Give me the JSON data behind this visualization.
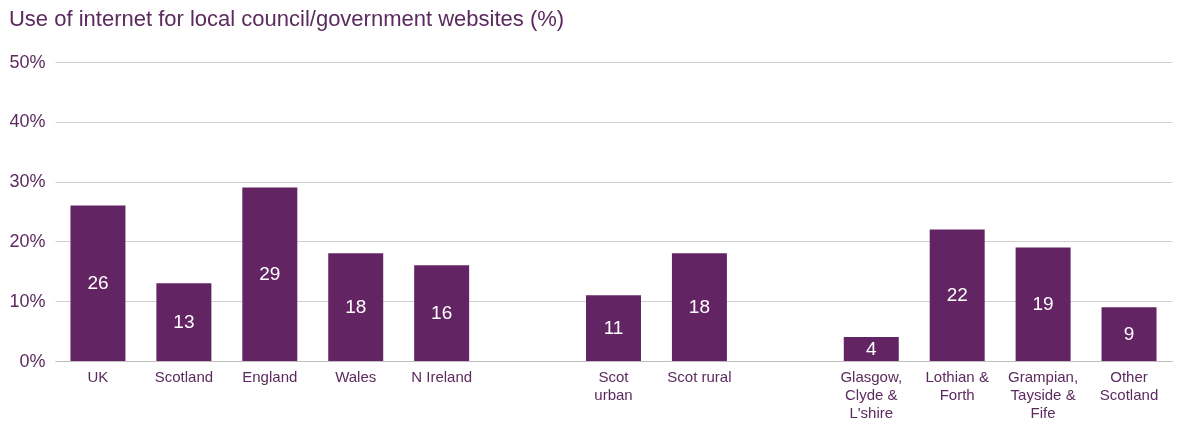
{
  "chart_data": {
    "type": "bar",
    "title": "Use of internet for local council/government websites (%)",
    "categories": [
      "UK",
      "Scotland",
      "England",
      "Wales",
      "N Ireland",
      null,
      "Scot\nurban",
      "Scot rural",
      null,
      "Glasgow,\nClyde &\nL'shire",
      "Lothian &\nForth",
      "Grampian,\nTayside &\nFife",
      "Other\nScotland"
    ],
    "values": [
      26,
      13,
      29,
      18,
      16,
      null,
      11,
      18,
      null,
      4,
      22,
      19,
      9
    ],
    "color": "#632463",
    "ylim": [
      0,
      50
    ],
    "yticks": [
      {
        "value": 0,
        "label": "0%"
      },
      {
        "value": 10,
        "label": "10%"
      },
      {
        "value": 20,
        "label": "20%"
      },
      {
        "value": 30,
        "label": "30%"
      },
      {
        "value": 40,
        "label": "40%"
      },
      {
        "value": 50,
        "label": "50%"
      }
    ],
    "grid": "y",
    "data_labels": true
  }
}
